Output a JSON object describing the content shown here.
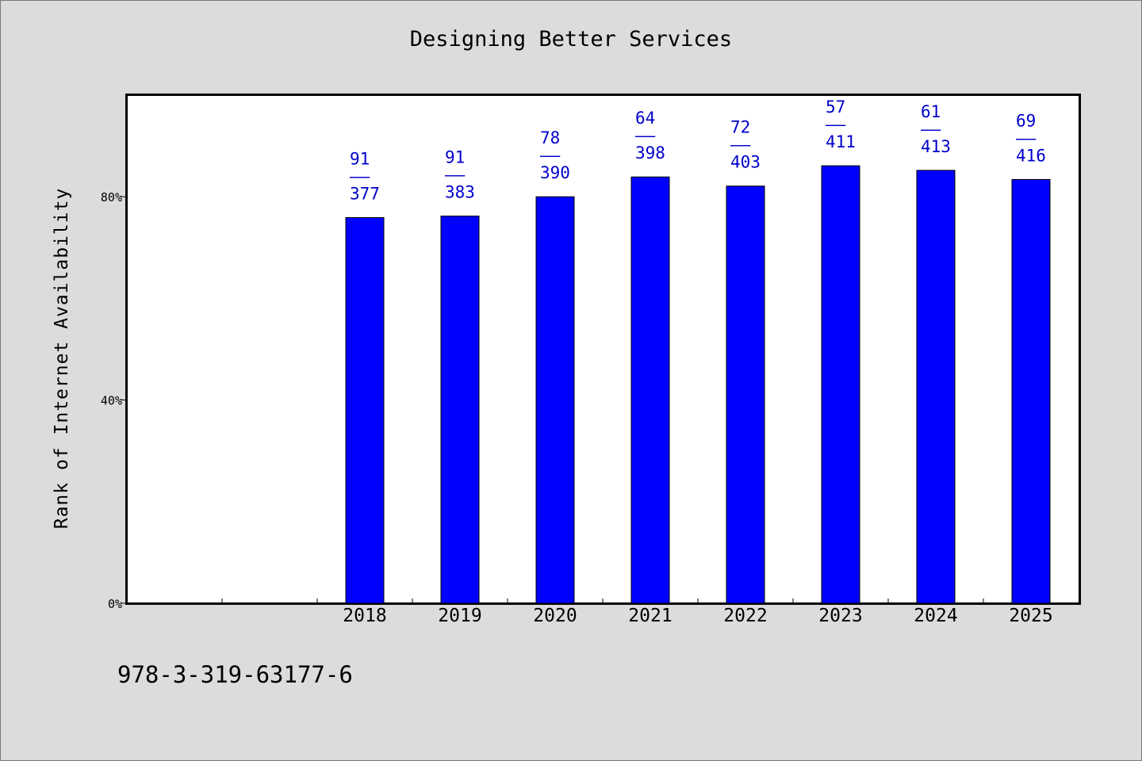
{
  "chart_data": {
    "type": "bar",
    "title": "Designing Better Services",
    "xlabel": "",
    "ylabel": "Rank of Internet Availability",
    "y_unit": "%",
    "ylim": [
      0,
      100
    ],
    "yticks": [
      0,
      40,
      80
    ],
    "ytick_labels": [
      "0%",
      "40%",
      "80%"
    ],
    "categories": [
      "2018",
      "2019",
      "2020",
      "2021",
      "2022",
      "2023",
      "2024",
      "2025"
    ],
    "values": [
      75.9,
      76.2,
      80.0,
      83.9,
      82.1,
      86.1,
      85.2,
      83.4
    ],
    "bar_labels": [
      {
        "top": "91",
        "bottom": "377"
      },
      {
        "top": "91",
        "bottom": "383"
      },
      {
        "top": "78",
        "bottom": "390"
      },
      {
        "top": "64",
        "bottom": "398"
      },
      {
        "top": "72",
        "bottom": "403"
      },
      {
        "top": "57",
        "bottom": "411"
      },
      {
        "top": "61",
        "bottom": "413"
      },
      {
        "top": "69",
        "bottom": "416"
      }
    ],
    "label_separator": "——",
    "bar_color": "#0000ff",
    "label_color": "#0000cc",
    "grid": false,
    "legend": "none"
  },
  "footer": {
    "code": "978-3-319-63177-6"
  }
}
